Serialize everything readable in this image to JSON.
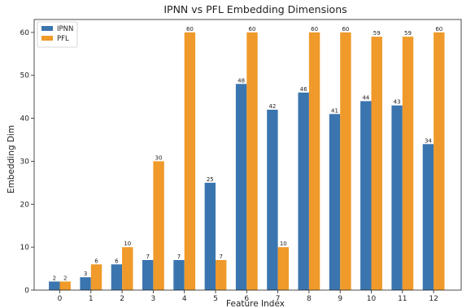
{
  "chart_data": {
    "type": "bar",
    "title": "IPNN vs PFL Embedding Dimensions",
    "xlabel": "Feature Index",
    "ylabel": "Embedding Dim",
    "categories": [
      "0",
      "1",
      "2",
      "3",
      "4",
      "5",
      "6",
      "7",
      "8",
      "9",
      "10",
      "11",
      "12"
    ],
    "series": [
      {
        "name": "IPNN",
        "color": "#3b75af",
        "values": [
          2,
          3,
          6,
          7,
          7,
          25,
          48,
          42,
          46,
          41,
          44,
          43,
          34
        ]
      },
      {
        "name": "PFL",
        "color": "#ef9a2a",
        "values": [
          2,
          6,
          10,
          30,
          60,
          7,
          60,
          10,
          60,
          60,
          59,
          59,
          60
        ]
      }
    ],
    "ylim": [
      0,
      63
    ],
    "yticks": [
      0,
      10,
      20,
      30,
      40,
      50,
      60
    ],
    "legend": "top-left",
    "grid": false
  }
}
